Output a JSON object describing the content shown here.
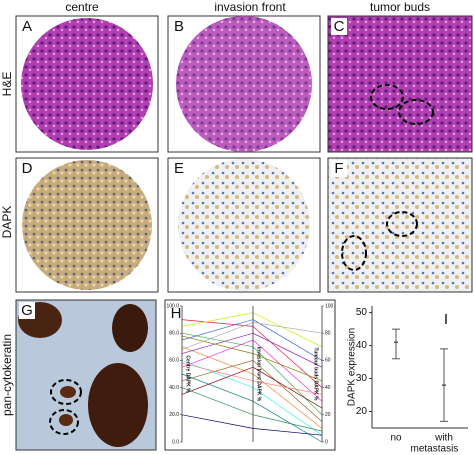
{
  "figure": {
    "columns": [
      "centre",
      "invasion front",
      "tumor buds"
    ],
    "rows": [
      "H&E",
      "DAPK",
      "pan-cytokeratin"
    ],
    "panels": [
      "A",
      "B",
      "C",
      "D",
      "E",
      "F",
      "G",
      "H",
      "I"
    ]
  },
  "chart_data": [
    {
      "type": "parallel",
      "axis_labels": [
        "Centre DAPK %",
        "Invasion front DAPK %",
        "Tumour buds DAPK %"
      ],
      "ylim": [
        0,
        100
      ],
      "yticks": [
        {
          "value": 0,
          "label": "0.0"
        },
        {
          "value": 20,
          "label": "20.0"
        },
        {
          "value": 40,
          "label": "40.0"
        },
        {
          "value": 60,
          "label": "60.0"
        },
        {
          "value": 80,
          "label": "80.0"
        },
        {
          "value": 100,
          "label": "100.0"
        }
      ],
      "y2ticks": [
        0,
        20,
        40,
        60,
        80,
        100
      ],
      "series": [
        {
          "color": "#e6194b",
          "values": [
            90,
            85,
            40
          ]
        },
        {
          "color": "#3cb44b",
          "values": [
            80,
            70,
            20
          ]
        },
        {
          "color": "#4363d8",
          "values": [
            75,
            90,
            60
          ]
        },
        {
          "color": "#f58231",
          "values": [
            70,
            50,
            10
          ]
        },
        {
          "color": "#911eb4",
          "values": [
            65,
            80,
            55
          ]
        },
        {
          "color": "#46f0f0",
          "values": [
            60,
            40,
            5
          ]
        },
        {
          "color": "#f032e6",
          "values": [
            55,
            75,
            30
          ]
        },
        {
          "color": "#bcf60c",
          "values": [
            85,
            95,
            70
          ]
        },
        {
          "color": "#008080",
          "values": [
            50,
            30,
            0
          ]
        },
        {
          "color": "#9a6324",
          "values": [
            45,
            60,
            15
          ]
        },
        {
          "color": "#800000",
          "values": [
            35,
            55,
            25
          ]
        },
        {
          "color": "#808000",
          "values": [
            78,
            65,
            45
          ]
        },
        {
          "color": "#000075",
          "values": [
            20,
            10,
            5
          ]
        },
        {
          "color": "#aaaaaa",
          "values": [
            68,
            88,
            80
          ]
        },
        {
          "color": "#ff7f7f",
          "values": [
            58,
            45,
            35
          ]
        },
        {
          "color": "#2e8b57",
          "values": [
            40,
            20,
            8
          ]
        }
      ]
    },
    {
      "type": "errorbar",
      "y_label": "DAPK expression",
      "x_label": "metastasis",
      "categories": [
        "no",
        "with"
      ],
      "values": [
        41,
        28
      ],
      "low": [
        36,
        17
      ],
      "high": [
        45,
        39
      ],
      "ylim": [
        15,
        52
      ],
      "yticks": [
        20,
        30,
        40,
        50
      ],
      "color": "#555555"
    }
  ]
}
